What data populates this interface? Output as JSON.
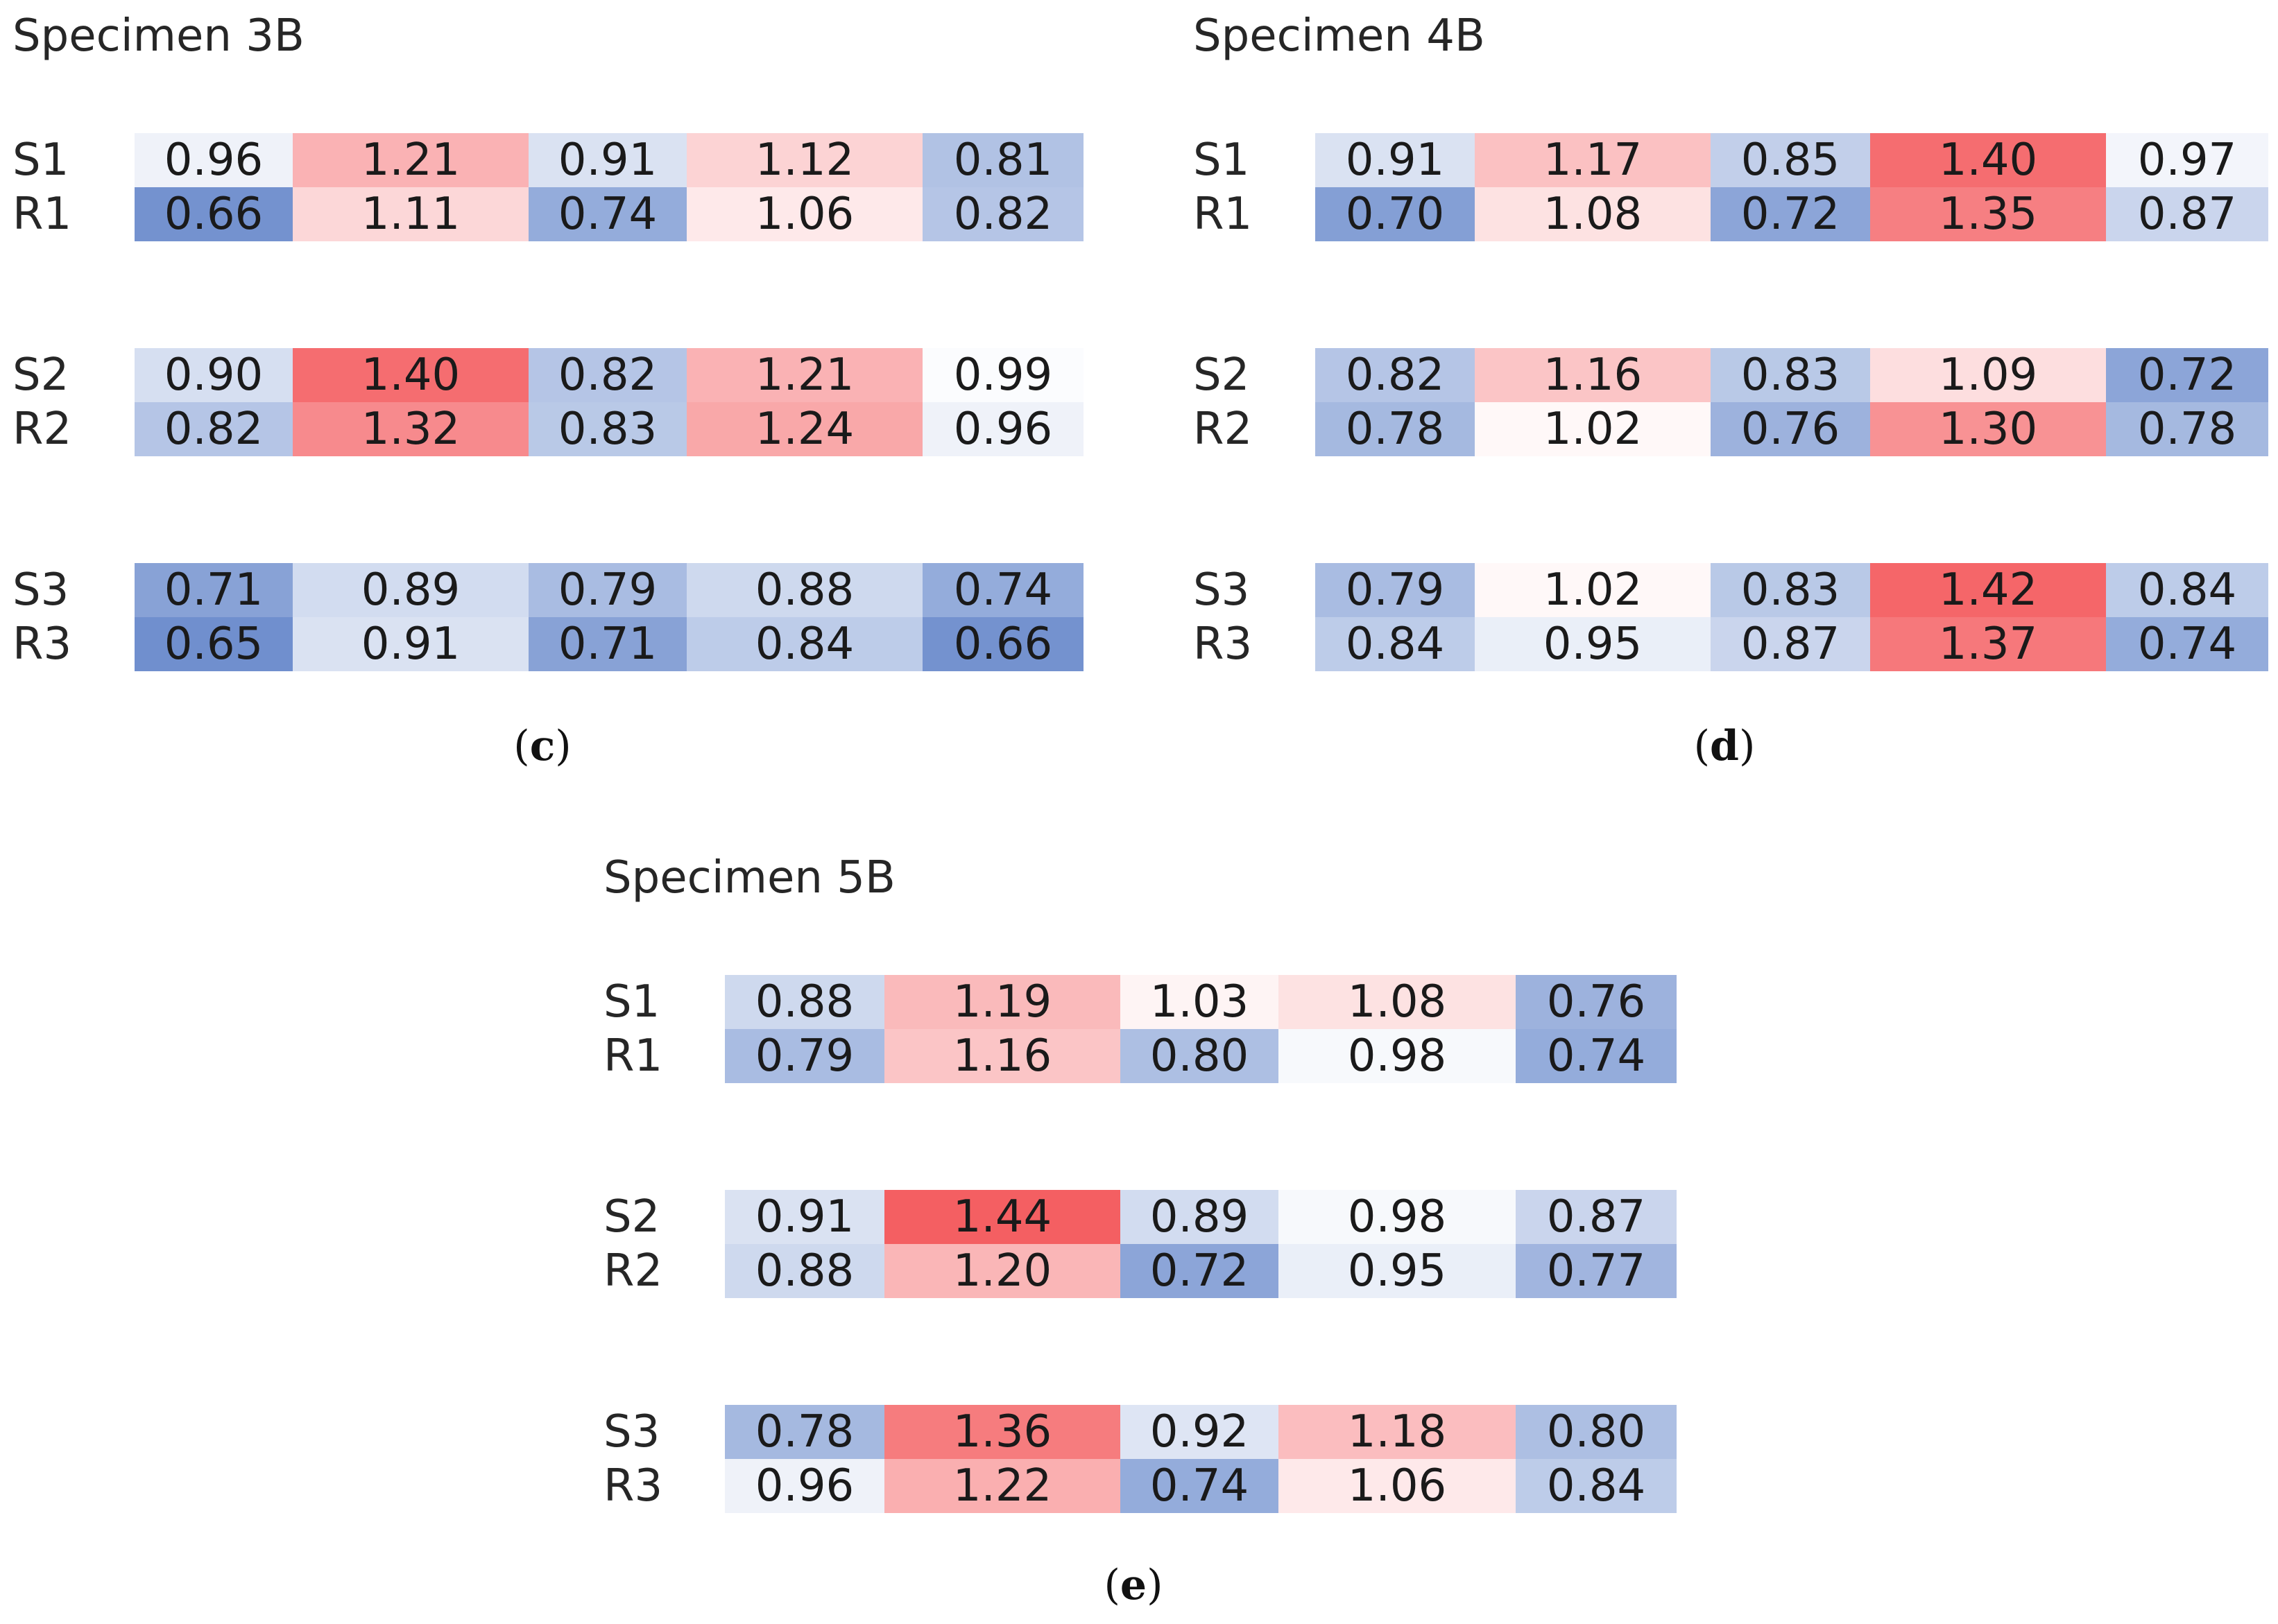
{
  "chart_data": [
    {
      "type": "heatmap",
      "title": "Specimen 3B",
      "caption_letter": "c",
      "groups": [
        {
          "rows": [
            {
              "label": "S1",
              "values": [
                0.96,
                1.21,
                0.91,
                1.12,
                0.81
              ]
            },
            {
              "label": "R1",
              "values": [
                0.66,
                1.11,
                0.74,
                1.06,
                0.82
              ]
            }
          ]
        },
        {
          "rows": [
            {
              "label": "S2",
              "values": [
                0.9,
                1.4,
                0.82,
                1.21,
                0.99
              ]
            },
            {
              "label": "R2",
              "values": [
                0.82,
                1.32,
                0.83,
                1.24,
                0.96
              ]
            }
          ]
        },
        {
          "rows": [
            {
              "label": "S3",
              "values": [
                0.71,
                0.89,
                0.79,
                0.88,
                0.74
              ]
            },
            {
              "label": "R3",
              "values": [
                0.65,
                0.91,
                0.71,
                0.84,
                0.66
              ]
            }
          ]
        }
      ]
    },
    {
      "type": "heatmap",
      "title": "Specimen 4B",
      "caption_letter": "d",
      "groups": [
        {
          "rows": [
            {
              "label": "S1",
              "values": [
                0.91,
                1.17,
                0.85,
                1.4,
                0.97
              ]
            },
            {
              "label": "R1",
              "values": [
                0.7,
                1.08,
                0.72,
                1.35,
                0.87
              ]
            }
          ]
        },
        {
          "rows": [
            {
              "label": "S2",
              "values": [
                0.82,
                1.16,
                0.83,
                1.09,
                0.72
              ]
            },
            {
              "label": "R2",
              "values": [
                0.78,
                1.02,
                0.76,
                1.3,
                0.78
              ]
            }
          ]
        },
        {
          "rows": [
            {
              "label": "S3",
              "values": [
                0.79,
                1.02,
                0.83,
                1.42,
                0.84
              ]
            },
            {
              "label": "R3",
              "values": [
                0.84,
                0.95,
                0.87,
                1.37,
                0.74
              ]
            }
          ]
        }
      ]
    },
    {
      "type": "heatmap",
      "title": "Specimen 5B",
      "caption_letter": "e",
      "groups": [
        {
          "rows": [
            {
              "label": "S1",
              "values": [
                0.88,
                1.19,
                1.03,
                1.08,
                0.76
              ]
            },
            {
              "label": "R1",
              "values": [
                0.79,
                1.16,
                0.8,
                0.98,
                0.74
              ]
            }
          ]
        },
        {
          "rows": [
            {
              "label": "S2",
              "values": [
                0.91,
                1.44,
                0.89,
                0.98,
                0.87
              ]
            },
            {
              "label": "R2",
              "values": [
                0.88,
                1.2,
                0.72,
                0.95,
                0.77
              ]
            }
          ]
        },
        {
          "rows": [
            {
              "label": "S3",
              "values": [
                0.78,
                1.36,
                0.92,
                1.18,
                0.8
              ]
            },
            {
              "label": "R3",
              "values": [
                0.96,
                1.22,
                0.74,
                1.06,
                0.84
              ]
            }
          ]
        }
      ]
    }
  ],
  "color_scale": {
    "center": 1.0,
    "low_color": "#5b7fc7",
    "mid_color": "#ffffff",
    "high_color": "#f45b5e",
    "low_value": 0.6,
    "high_value": 1.45
  }
}
